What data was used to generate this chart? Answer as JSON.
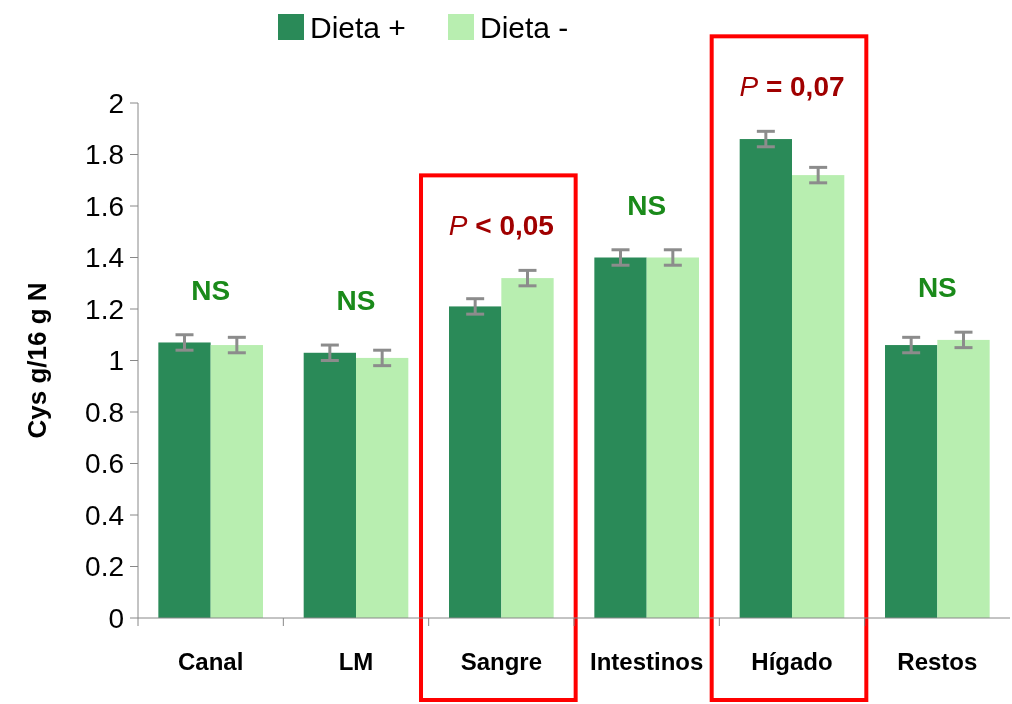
{
  "chart_data": {
    "type": "bar",
    "ylabel": "Cys g/16 g N",
    "categories": [
      "Canal",
      "LM",
      "Sangre",
      "Intestinos",
      "Hígado",
      "Restos"
    ],
    "series": [
      {
        "name": "Dieta +",
        "color": "#2a8a58",
        "values": [
          1.07,
          1.03,
          1.21,
          1.4,
          1.86,
          1.06
        ],
        "errors": [
          0.03,
          0.03,
          0.03,
          0.03,
          0.03,
          0.03
        ]
      },
      {
        "name": "Dieta -",
        "color": "#b8eeb0",
        "values": [
          1.06,
          1.01,
          1.32,
          1.4,
          1.72,
          1.08
        ],
        "errors": [
          0.03,
          0.03,
          0.03,
          0.03,
          0.03,
          0.03
        ]
      }
    ],
    "ylim": [
      0,
      2
    ],
    "yticks": [
      0,
      0.2,
      0.4,
      0.6,
      0.8,
      1,
      1.2,
      1.4,
      1.6,
      1.8,
      2
    ],
    "annotations": [
      "NS",
      "NS",
      "P < 0,05",
      "NS",
      "P = 0,07",
      "NS"
    ],
    "legend": "top",
    "grid": false
  }
}
